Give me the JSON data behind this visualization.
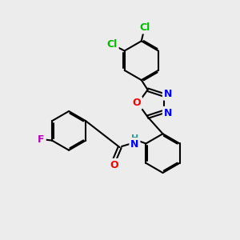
{
  "bg_color": "#ececec",
  "atom_colors": {
    "Cl": "#00bb00",
    "F": "#bb00bb",
    "O": "#ff0000",
    "N": "#0000ff",
    "C": "#000000",
    "H": "#339999"
  },
  "bond_width": 1.5,
  "font_size": 9
}
